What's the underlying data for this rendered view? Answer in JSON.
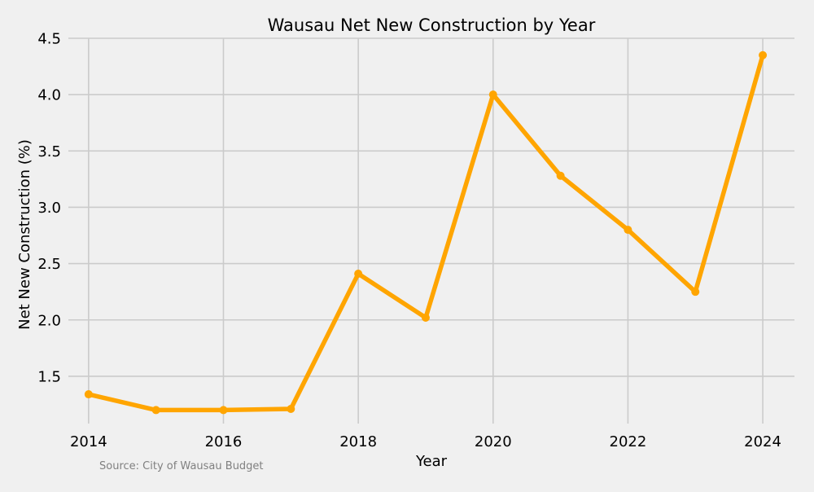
{
  "chart_data": {
    "type": "line",
    "title": "Wausau Net New Construction by Year",
    "xlabel": "Year",
    "ylabel": "Net New Construction (%)",
    "x": [
      2014,
      2015,
      2016,
      2017,
      2018,
      2019,
      2020,
      2021,
      2022,
      2023,
      2024
    ],
    "series": [
      {
        "values": [
          1.34,
          1.2,
          1.2,
          1.21,
          2.41,
          2.02,
          4.0,
          3.28,
          2.8,
          2.25,
          4.35
        ],
        "color": "#ffa500"
      }
    ],
    "xticks": [
      "2014",
      "2016",
      "2018",
      "2020",
      "2022",
      "2024"
    ],
    "yticks": [
      "1.5",
      "2.0",
      "2.5",
      "3.0",
      "3.5",
      "4.0",
      "4.5"
    ],
    "xlim": [
      2013.7,
      2024.47
    ],
    "ylim": [
      1.08,
      4.5
    ],
    "grid": true,
    "annotation": "Source: City of Wausau Budget",
    "colors": {
      "background": "#f0f0f0",
      "grid": "#cbcbcb",
      "line": "#ffa500",
      "source": "#808080"
    }
  }
}
